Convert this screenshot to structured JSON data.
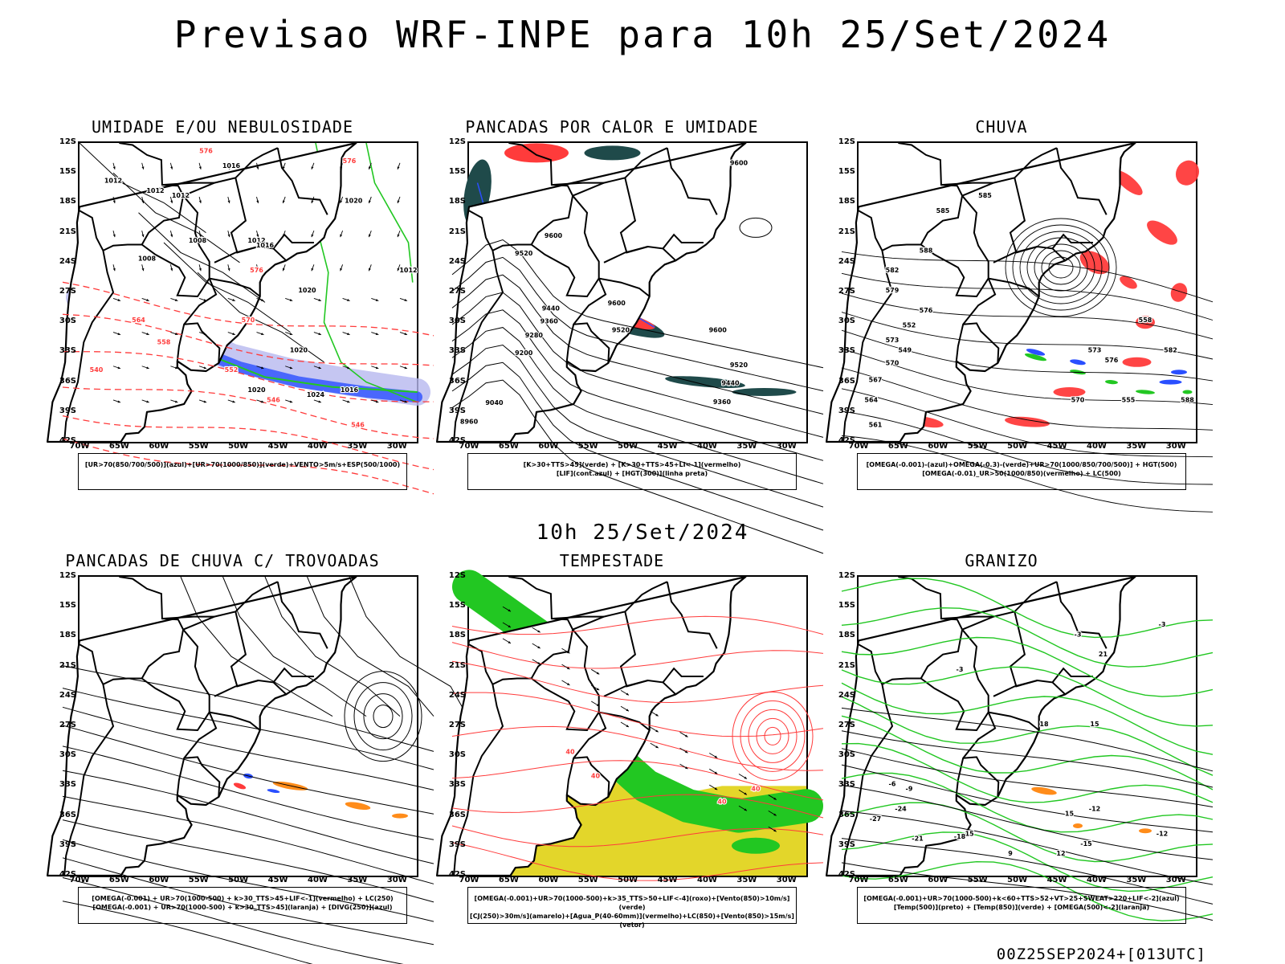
{
  "title": "Previsao WRF-INPE  para 10h 25/Set/2024",
  "subtitle": "10h 25/Set/2024",
  "footer": "00Z25SEP2024+[013UTC]",
  "axes": {
    "lat_labels": [
      "12S",
      "15S",
      "18S",
      "21S",
      "24S",
      "27S",
      "30S",
      "33S",
      "36S",
      "39S",
      "42S"
    ],
    "lon_labels": [
      "70W",
      "65W",
      "60W",
      "55W",
      "50W",
      "45W",
      "40W",
      "35W",
      "30W"
    ]
  },
  "colors": {
    "blue": "#2a4fff",
    "green": "#22c722",
    "red": "#ff3b3b",
    "lavender": "#b6b8ef",
    "dark_teal": "#1f4a4a",
    "orange": "#ff8c1a",
    "yellow": "#e3d62a"
  },
  "panels": [
    {
      "title": "UMIDADE E/OU NEBULOSIDADE",
      "legend": [
        "[UR>70(850/700/500)](azul)+[UR>70(1000/850)](verde)+VENTO>5m/s+ESP(500/1000)"
      ],
      "contour_labels": [
        "1016",
        "1012",
        "1012",
        "1012",
        "1008",
        "1008",
        "1012",
        "1016",
        "1020",
        "1020",
        "1020",
        "1024",
        "1016",
        "1012",
        "1020",
        "576",
        "576",
        "576",
        "570",
        "564",
        "558",
        "552",
        "546",
        "546",
        "540"
      ]
    },
    {
      "title": "PANCADAS POR CALOR E UMIDADE",
      "legend": [
        "[K>30+TTS>45](verde) + [K>30+TTS>45+LI<-1](vermelho)",
        "[LIF](cont.azul) + [HGT(300)](linha preta)"
      ],
      "contour_labels": [
        "9600",
        "9600",
        "9520",
        "9440",
        "9360",
        "9280",
        "9200",
        "9600",
        "9520",
        "9600",
        "9520",
        "9440",
        "9360",
        "9040",
        "8960"
      ]
    },
    {
      "title": "CHUVA",
      "legend": [
        "[OMEGA(-0.001)-(azul)+OMEGA(-0.3)-(verde)+UR>70(1000/850/700/500)] + HGT(500)",
        "[OMEGA(-0.01)_UR>50(1000/850)(vermelho) + LC(500)"
      ],
      "contour_labels": [
        "585",
        "588",
        "585",
        "582",
        "579",
        "576",
        "573",
        "570",
        "567",
        "564",
        "561",
        "558",
        "555",
        "552",
        "549",
        "576",
        "582",
        "588",
        "570",
        "573"
      ]
    },
    {
      "title": "PANCADAS DE CHUVA C/ TROVOADAS",
      "legend": [
        "[OMEGA(-0.001) + UR>70(1000-500) + k>30_TTS>45+LIF<-1](vermelho) + LC(250)",
        "[OMEGA(-0.001) + UR>70(1000-500) + k>30_TTS>45](laranja) + [DIVG(250)](azul)"
      ]
    },
    {
      "title": "TEMPESTADE",
      "legend": [
        "[OMEGA(-0.001)+UR>70(1000-500)+k>35_TTS>50+LIF<-4](roxo)+[Vento(850)>10m/s](verde)",
        "[CJ(250)>30m/s](amarelo)+[Agua_P(40-60mm)](vermelho)+LC(850)+[Vento(850)>15m/s](vetor)"
      ],
      "contour_labels": [
        "40",
        "40",
        "40",
        "40"
      ]
    },
    {
      "title": "GRANIZO",
      "legend": [
        "[OMEGA(-0.001)+UR>70(1000-500)+k<60+TTS>52+VT>25+SWEAT>220+LIF<-2](azul)",
        "[Temp(500)](preto) + [Temp(850)](verde) + [OMEGA(500)<-2](laranja)"
      ],
      "contour_labels": [
        "-3",
        "-3",
        "-3",
        "-6",
        "-9",
        "-12",
        "-15",
        "-18",
        "-21",
        "-24",
        "-27",
        "15",
        "18",
        "21",
        "15",
        "12",
        "9",
        "-12",
        "-15"
      ]
    }
  ]
}
